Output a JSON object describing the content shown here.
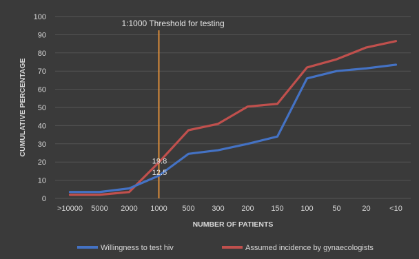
{
  "chart_data": {
    "type": "line",
    "title": "",
    "xlabel": "NUMBER OF PATIENTS",
    "ylabel": "CUMULATIVE PERCENTAGE",
    "categories": [
      ">10000",
      "5000",
      "2000",
      "1000",
      "500",
      "300",
      "200",
      "150",
      "100",
      "50",
      "20",
      "<10"
    ],
    "ylim": [
      0,
      100
    ],
    "yticks": [
      0,
      10,
      20,
      30,
      40,
      50,
      60,
      70,
      80,
      90,
      100
    ],
    "grid": true,
    "legend_position": "bottom",
    "series": [
      {
        "name": "Willingness to test hiv",
        "color": "#4472c4",
        "values": [
          3.5,
          3.5,
          5.5,
          12.5,
          24.5,
          26.5,
          30,
          34,
          66,
          70,
          71.5,
          73.5
        ]
      },
      {
        "name": "Assumed incidence by gynaecologists",
        "color": "#c0504d",
        "values": [
          2,
          2,
          3.5,
          19.8,
          37.5,
          41,
          50.5,
          52,
          72,
          76.5,
          83,
          86.5
        ]
      }
    ],
    "data_labels": [
      {
        "series": 1,
        "category": "1000",
        "text": "19.8"
      },
      {
        "series": 0,
        "category": "1000",
        "text": "12.5"
      }
    ],
    "threshold": {
      "category": "1000",
      "label": "1:1000 Threshold for testing",
      "color": "#d98c3a"
    },
    "background_color": "#3a3a3a",
    "grid_color": "#555555"
  }
}
